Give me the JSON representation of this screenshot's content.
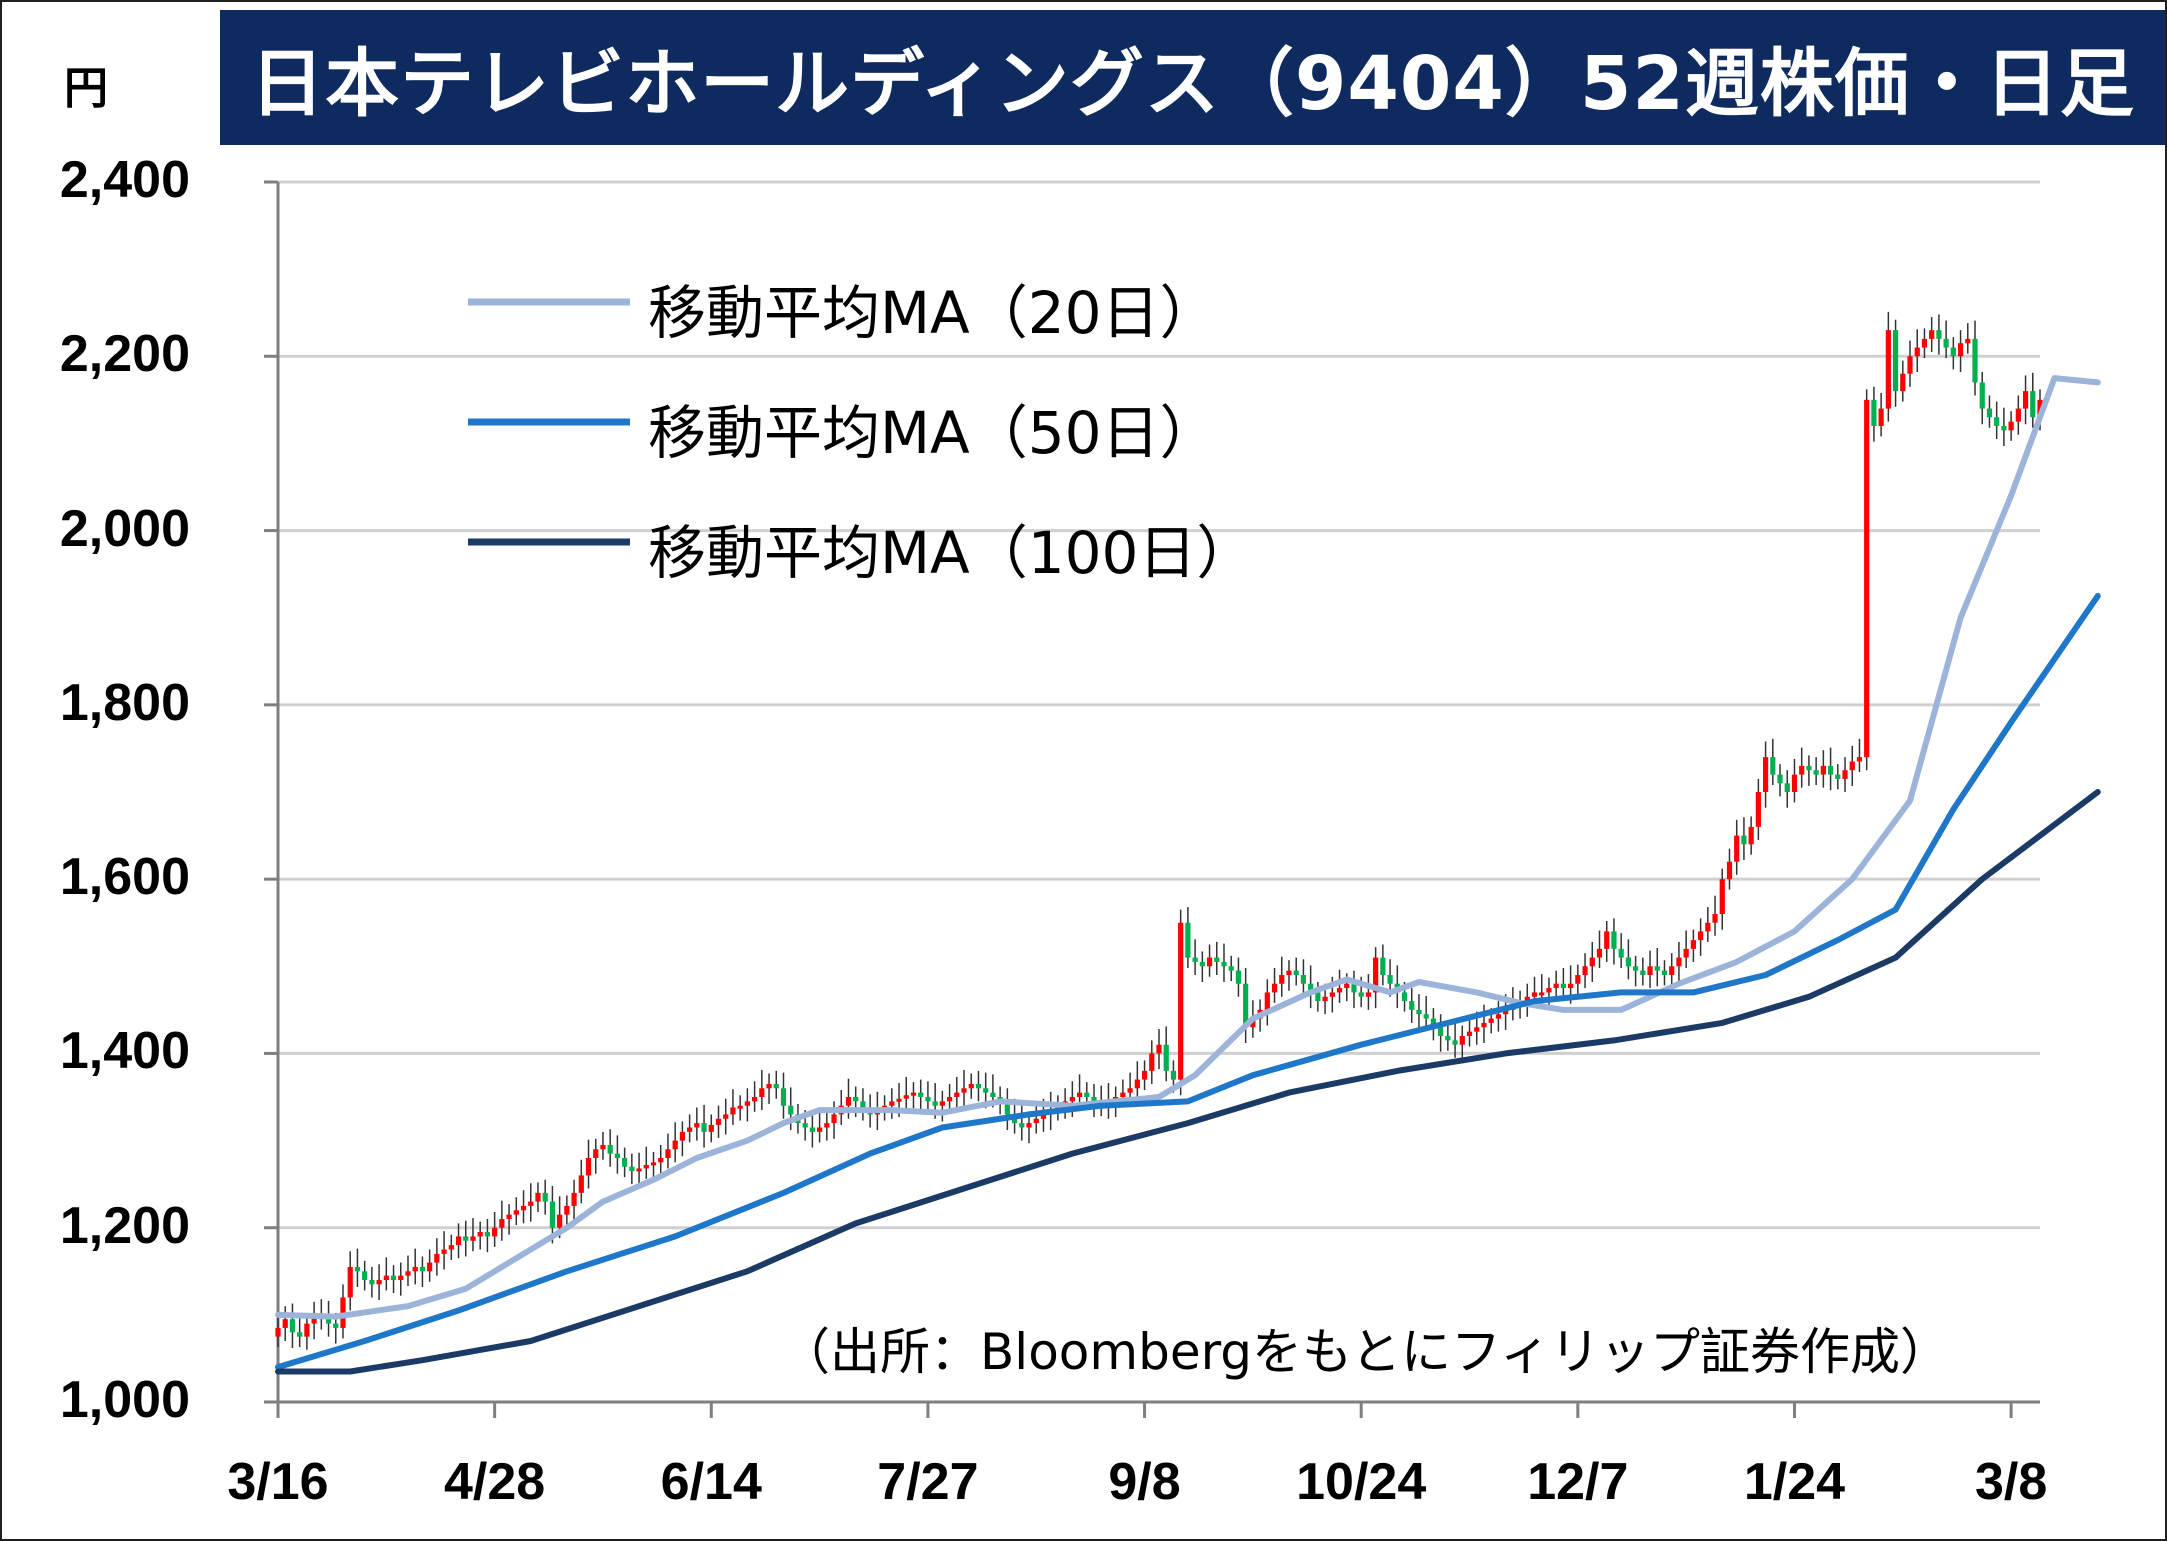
{
  "title": "日本テレビホールディングス（9404）52週株価・日足",
  "unit": "円",
  "source": "（出所：Bloombergをもとにフィリップ証券作成）",
  "chart_data": {
    "type": "candlestick",
    "title": "日本テレビホールディングス（9404）52週株価・日足",
    "ylabel": "円",
    "ylim": [
      1000,
      2400
    ],
    "y_ticks": [
      "1,000",
      "1,200",
      "1,400",
      "1,600",
      "1,800",
      "2,000",
      "2,200",
      "2,400"
    ],
    "y_tick_values": [
      1000,
      1200,
      1400,
      1600,
      1800,
      2000,
      2200,
      2400
    ],
    "x_ticks": [
      "3/16",
      "4/28",
      "6/14",
      "7/27",
      "9/8",
      "10/24",
      "12/7",
      "1/24",
      "3/8"
    ],
    "x_tick_index": [
      0,
      30,
      60,
      90,
      120,
      150,
      180,
      210,
      240
    ],
    "grid": "horizontal",
    "up_color": "#ff0000",
    "down_color": "#00b050",
    "candles_close": [
      1085,
      1095,
      1080,
      1075,
      1090,
      1100,
      1095,
      1090,
      1085,
      1120,
      1155,
      1150,
      1140,
      1135,
      1140,
      1145,
      1140,
      1145,
      1150,
      1155,
      1150,
      1160,
      1170,
      1175,
      1180,
      1190,
      1185,
      1190,
      1195,
      1190,
      1200,
      1210,
      1215,
      1220,
      1225,
      1230,
      1240,
      1230,
      1200,
      1215,
      1225,
      1240,
      1260,
      1280,
      1290,
      1295,
      1285,
      1280,
      1270,
      1265,
      1268,
      1272,
      1275,
      1280,
      1290,
      1300,
      1310,
      1315,
      1320,
      1310,
      1318,
      1325,
      1330,
      1338,
      1340,
      1345,
      1350,
      1360,
      1365,
      1360,
      1340,
      1330,
      1320,
      1315,
      1310,
      1315,
      1320,
      1330,
      1340,
      1350,
      1345,
      1335,
      1330,
      1335,
      1340,
      1345,
      1348,
      1352,
      1355,
      1350,
      1345,
      1340,
      1345,
      1350,
      1355,
      1360,
      1365,
      1360,
      1355,
      1350,
      1345,
      1330,
      1320,
      1315,
      1320,
      1325,
      1330,
      1335,
      1340,
      1345,
      1350,
      1355,
      1350,
      1345,
      1340,
      1345,
      1350,
      1355,
      1360,
      1370,
      1380,
      1400,
      1410,
      1380,
      1370,
      1550,
      1510,
      1505,
      1500,
      1510,
      1505,
      1500,
      1495,
      1480,
      1430,
      1440,
      1450,
      1470,
      1480,
      1490,
      1495,
      1490,
      1480,
      1470,
      1460,
      1465,
      1470,
      1475,
      1480,
      1470,
      1465,
      1470,
      1510,
      1490,
      1480,
      1470,
      1460,
      1450,
      1445,
      1440,
      1430,
      1420,
      1415,
      1410,
      1420,
      1425,
      1430,
      1435,
      1440,
      1445,
      1450,
      1455,
      1460,
      1465,
      1470,
      1470,
      1475,
      1480,
      1475,
      1480,
      1490,
      1500,
      1510,
      1520,
      1540,
      1520,
      1510,
      1500,
      1495,
      1490,
      1500,
      1495,
      1490,
      1500,
      1510,
      1520,
      1530,
      1540,
      1550,
      1560,
      1600,
      1620,
      1650,
      1640,
      1660,
      1700,
      1740,
      1720,
      1710,
      1700,
      1720,
      1730,
      1725,
      1720,
      1730,
      1720,
      1715,
      1725,
      1735,
      1740,
      2150,
      2120,
      2140,
      2230,
      2160,
      2180,
      2200,
      2210,
      2220,
      2230,
      2220,
      2210,
      2200,
      2215,
      2220,
      2170,
      2140,
      2130,
      2120,
      2115,
      2125,
      2140,
      2160,
      2130,
      2150
    ],
    "series": [
      {
        "name": "移動平均MA（20日）",
        "color": "#9db4da",
        "points": [
          [
            0,
            1100
          ],
          [
            8,
            1098
          ],
          [
            18,
            1110
          ],
          [
            26,
            1130
          ],
          [
            32,
            1160
          ],
          [
            40,
            1200
          ],
          [
            45,
            1230
          ],
          [
            52,
            1255
          ],
          [
            58,
            1280
          ],
          [
            65,
            1300
          ],
          [
            70,
            1320
          ],
          [
            75,
            1335
          ],
          [
            85,
            1335
          ],
          [
            92,
            1332
          ],
          [
            100,
            1345
          ],
          [
            110,
            1340
          ],
          [
            116,
            1345
          ],
          [
            122,
            1350
          ],
          [
            127,
            1375
          ],
          [
            135,
            1440
          ],
          [
            143,
            1470
          ],
          [
            148,
            1485
          ],
          [
            154,
            1470
          ],
          [
            158,
            1482
          ],
          [
            166,
            1470
          ],
          [
            172,
            1458
          ],
          [
            178,
            1450
          ],
          [
            186,
            1450
          ],
          [
            194,
            1480
          ],
          [
            202,
            1505
          ],
          [
            210,
            1540
          ],
          [
            218,
            1600
          ],
          [
            226,
            1690
          ],
          [
            233,
            1900
          ],
          [
            240,
            2040
          ],
          [
            246,
            2175
          ],
          [
            252,
            2170
          ]
        ]
      },
      {
        "name": "移動平均MA（50日）",
        "color": "#1f77c9",
        "points": [
          [
            0,
            1040
          ],
          [
            12,
            1070
          ],
          [
            25,
            1105
          ],
          [
            40,
            1150
          ],
          [
            55,
            1190
          ],
          [
            70,
            1240
          ],
          [
            82,
            1285
          ],
          [
            92,
            1315
          ],
          [
            104,
            1330
          ],
          [
            114,
            1340
          ],
          [
            126,
            1345
          ],
          [
            135,
            1375
          ],
          [
            150,
            1410
          ],
          [
            162,
            1435
          ],
          [
            174,
            1460
          ],
          [
            186,
            1470
          ],
          [
            196,
            1470
          ],
          [
            206,
            1490
          ],
          [
            216,
            1530
          ],
          [
            224,
            1565
          ],
          [
            232,
            1680
          ],
          [
            240,
            1780
          ],
          [
            252,
            1925
          ]
        ]
      },
      {
        "name": "移動平均MA（100日）",
        "color": "#1c3a66",
        "points": [
          [
            0,
            1035
          ],
          [
            10,
            1035
          ],
          [
            20,
            1048
          ],
          [
            35,
            1070
          ],
          [
            50,
            1110
          ],
          [
            65,
            1150
          ],
          [
            80,
            1205
          ],
          [
            95,
            1245
          ],
          [
            110,
            1285
          ],
          [
            126,
            1320
          ],
          [
            140,
            1355
          ],
          [
            155,
            1380
          ],
          [
            170,
            1400
          ],
          [
            185,
            1415
          ],
          [
            200,
            1435
          ],
          [
            212,
            1465
          ],
          [
            224,
            1510
          ],
          [
            236,
            1600
          ],
          [
            252,
            1700
          ]
        ]
      }
    ]
  }
}
